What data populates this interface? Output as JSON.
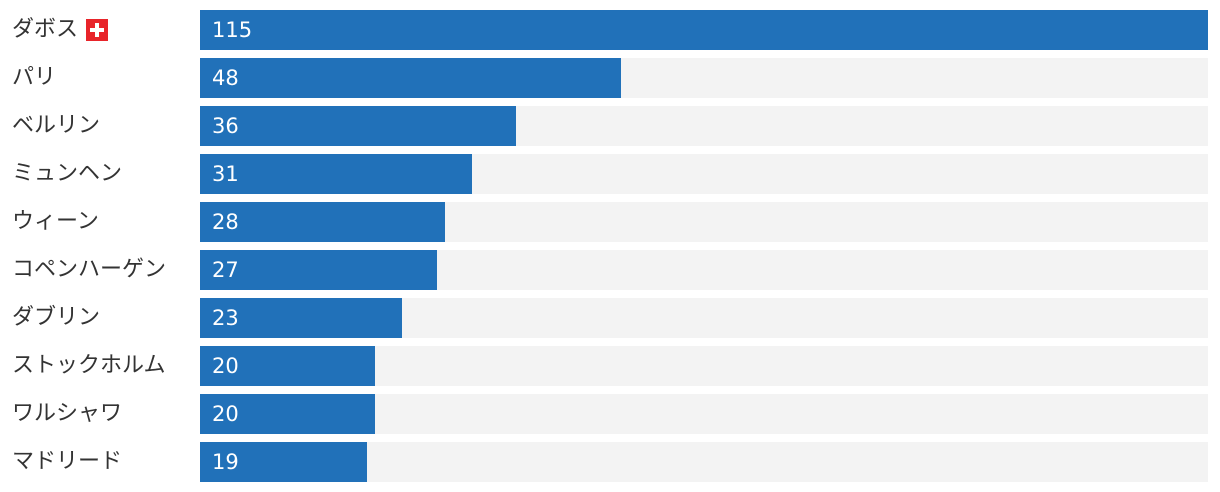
{
  "chart_data": {
    "type": "bar",
    "orientation": "horizontal",
    "categories": [
      "ダボス",
      "パリ",
      "ベルリン",
      "ミュンヘン",
      "ウィーン",
      "コペンハーゲン",
      "ダブリン",
      "ストックホルム",
      "ワルシャワ",
      "マドリード"
    ],
    "values": [
      115,
      48,
      36,
      31,
      28,
      27,
      23,
      20,
      20,
      19
    ],
    "flag_icons": [
      "swiss-flag-icon",
      null,
      null,
      null,
      null,
      null,
      null,
      null,
      null,
      null
    ],
    "xlim": [
      0,
      115
    ],
    "grid": false,
    "colors": {
      "bar": "#2171b9",
      "track": "#f3f3f3",
      "flag": "#e8242a"
    }
  }
}
